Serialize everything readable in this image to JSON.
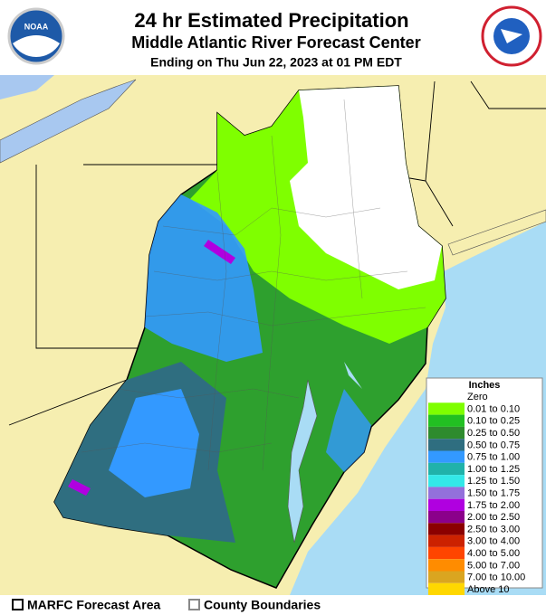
{
  "header": {
    "title": "24 hr Estimated Precipitation",
    "subtitle": "Middle Atlantic River Forecast Center",
    "date": "Ending on Thu Jun 22, 2023 at 01 PM EDT"
  },
  "logos": {
    "noaa": "NOAA"
  },
  "legend": {
    "title": "Inches",
    "items": [
      {
        "label": "Zero",
        "color": "#ffffff"
      },
      {
        "label": "0.01 to 0.10",
        "color": "#7fff00"
      },
      {
        "label": "0.10 to 0.25",
        "color": "#22c022"
      },
      {
        "label": "0.25 to 0.50",
        "color": "#2e8b2e"
      },
      {
        "label": "0.50 to 0.75",
        "color": "#2f6e80"
      },
      {
        "label": "0.75 to 1.00",
        "color": "#3399ff"
      },
      {
        "label": "1.00 to 1.25",
        "color": "#20b2aa"
      },
      {
        "label": "1.25 to 1.50",
        "color": "#33e8e8"
      },
      {
        "label": "1.50 to 1.75",
        "color": "#9370db"
      },
      {
        "label": "1.75 to 2.00",
        "color": "#b000e0"
      },
      {
        "label": "2.00 to 2.50",
        "color": "#8b008b"
      },
      {
        "label": "2.50 to 3.00",
        "color": "#8b0000"
      },
      {
        "label": "3.00 to 4.00",
        "color": "#cc2200"
      },
      {
        "label": "4.00 to 5.00",
        "color": "#ff4500"
      },
      {
        "label": "5.00 to 7.00",
        "color": "#ff8c00"
      },
      {
        "label": "7.00 to 10.00",
        "color": "#daa520"
      },
      {
        "label": "Above 10",
        "color": "#ffd700"
      }
    ]
  },
  "footer": {
    "items": [
      "MARFC Forecast Area",
      "County Boundaries"
    ]
  }
}
